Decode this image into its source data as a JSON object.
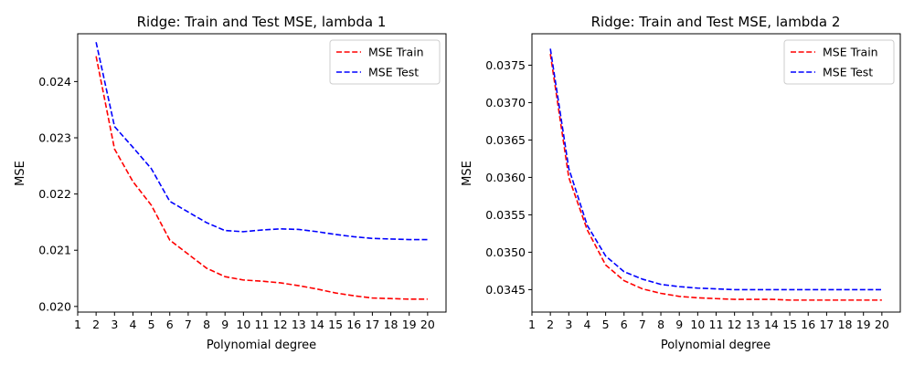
{
  "chart_data": [
    {
      "type": "line",
      "title": "Ridge: Train and Test MSE, lambda 1",
      "xlabel": "Polynomial degree",
      "ylabel": "MSE",
      "xlim": [
        1,
        21
      ],
      "ylim": [
        0.0199,
        0.02485
      ],
      "xticks": [
        1,
        2,
        3,
        4,
        5,
        6,
        7,
        8,
        9,
        10,
        11,
        12,
        13,
        14,
        15,
        16,
        17,
        18,
        19,
        20
      ],
      "yticks": [
        0.02,
        0.021,
        0.022,
        0.023,
        0.024
      ],
      "ytick_labels": [
        "0.020",
        "0.021",
        "0.022",
        "0.023",
        "0.024"
      ],
      "legend_position": "top-right",
      "series": [
        {
          "name": "MSE Train",
          "color": "#ff0000",
          "x": [
            2,
            3,
            4,
            5,
            6,
            7,
            8,
            9,
            10,
            11,
            12,
            13,
            14,
            15,
            16,
            17,
            18,
            19,
            20
          ],
          "y": [
            0.02445,
            0.0228,
            0.02222,
            0.0218,
            0.02118,
            0.02093,
            0.02068,
            0.02053,
            0.02047,
            0.02045,
            0.02042,
            0.02037,
            0.02031,
            0.02024,
            0.02019,
            0.02015,
            0.02014,
            0.02013,
            0.02013
          ]
        },
        {
          "name": "MSE Test",
          "color": "#0000ff",
          "x": [
            2,
            3,
            4,
            5,
            6,
            7,
            8,
            9,
            10,
            11,
            12,
            13,
            14,
            15,
            16,
            17,
            18,
            19,
            20
          ],
          "y": [
            0.0247,
            0.0232,
            0.02283,
            0.02245,
            0.02187,
            0.02168,
            0.02149,
            0.02135,
            0.02133,
            0.02136,
            0.02138,
            0.02137,
            0.02133,
            0.02128,
            0.02124,
            0.02121,
            0.0212,
            0.02119,
            0.02119
          ]
        }
      ]
    },
    {
      "type": "line",
      "title": "Ridge: Train and Test MSE, lambda 2",
      "xlabel": "Polynomial degree",
      "ylabel": "MSE",
      "xlim": [
        1,
        21
      ],
      "ylim": [
        0.0342,
        0.03792
      ],
      "xticks": [
        1,
        2,
        3,
        4,
        5,
        6,
        7,
        8,
        9,
        10,
        11,
        12,
        13,
        14,
        15,
        16,
        17,
        18,
        19,
        20
      ],
      "yticks": [
        0.0345,
        0.035,
        0.0355,
        0.036,
        0.0365,
        0.037,
        0.0375
      ],
      "ytick_labels": [
        "0.0345",
        "0.0350",
        "0.0355",
        "0.0360",
        "0.0365",
        "0.0370",
        "0.0375"
      ],
      "legend_position": "top-right",
      "series": [
        {
          "name": "MSE Train",
          "color": "#ff0000",
          "x": [
            2,
            3,
            4,
            5,
            6,
            7,
            8,
            9,
            10,
            11,
            12,
            13,
            14,
            15,
            16,
            17,
            18,
            19,
            20
          ],
          "y": [
            0.03765,
            0.036,
            0.0353,
            0.03483,
            0.03462,
            0.03451,
            0.03445,
            0.03441,
            0.03439,
            0.03438,
            0.03437,
            0.03437,
            0.03437,
            0.03436,
            0.03436,
            0.03436,
            0.03436,
            0.03436,
            0.03436
          ]
        },
        {
          "name": "MSE Test",
          "color": "#0000ff",
          "x": [
            2,
            3,
            4,
            5,
            6,
            7,
            8,
            9,
            10,
            11,
            12,
            13,
            14,
            15,
            16,
            17,
            18,
            19,
            20
          ],
          "y": [
            0.03772,
            0.03612,
            0.03536,
            0.03495,
            0.03474,
            0.03464,
            0.03457,
            0.03454,
            0.03452,
            0.03451,
            0.0345,
            0.0345,
            0.0345,
            0.0345,
            0.0345,
            0.0345,
            0.0345,
            0.0345,
            0.0345
          ]
        }
      ]
    }
  ]
}
